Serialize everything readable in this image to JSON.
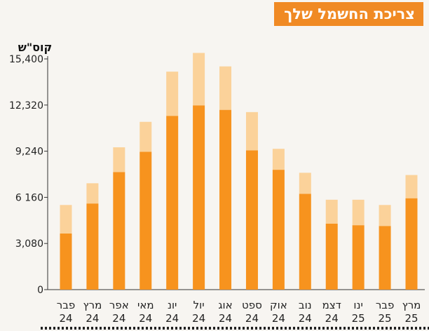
{
  "chart_data": {
    "type": "bar",
    "title": "צריכת החשמל שלך",
    "ylabel": "קוס\"ש",
    "ylim": [
      0,
      15400
    ],
    "yticks": [
      0,
      3080,
      6160,
      9240,
      12320,
      15400
    ],
    "ytick_labels": [
      "0",
      "3,080",
      "6 160",
      "9,240",
      "12,320",
      "15,400"
    ],
    "categories": [
      [
        "פבר",
        "24"
      ],
      [
        "מרץ",
        "24"
      ],
      [
        "אפר",
        "24"
      ],
      [
        "מאי",
        "24"
      ],
      [
        "יונ",
        "24"
      ],
      [
        "יול",
        "24"
      ],
      [
        "אוג",
        "24"
      ],
      [
        "ספט",
        "24"
      ],
      [
        "אוק",
        "24"
      ],
      [
        "נוב",
        "24"
      ],
      [
        "דצמ",
        "24"
      ],
      [
        "ינו",
        "25"
      ],
      [
        "פבר",
        "25"
      ],
      [
        "מרץ",
        "25"
      ]
    ],
    "series": [
      {
        "values": [
          3750,
          5750,
          7850,
          9200,
          11600,
          12300,
          12000,
          9300,
          8000,
          6400,
          4400,
          4300,
          4250,
          6100
        ],
        "color": "#f7931e"
      },
      {
        "values": [
          1900,
          1350,
          1650,
          2000,
          2950,
          3500,
          2900,
          2550,
          1400,
          1400,
          1600,
          1700,
          1400,
          1550
        ],
        "color": "#fbd29a"
      }
    ],
    "stacked": true,
    "grid": false
  }
}
